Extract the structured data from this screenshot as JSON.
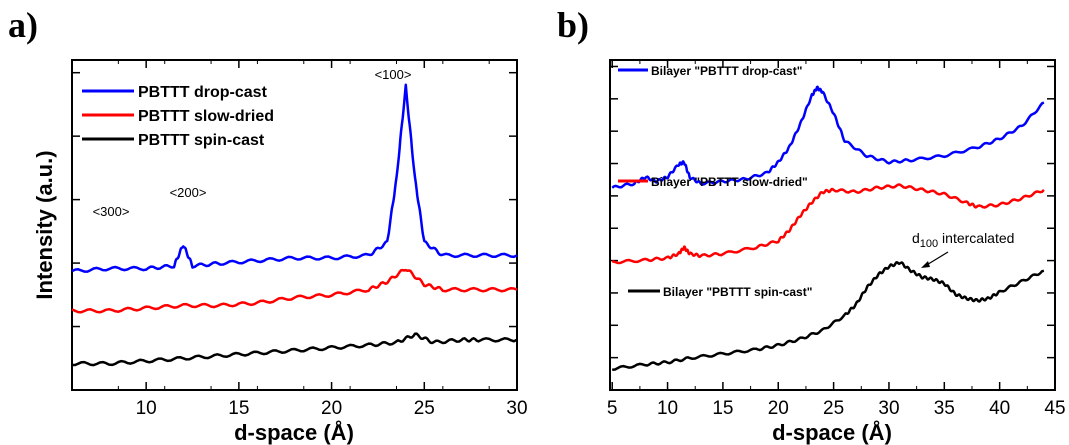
{
  "chart_data": [
    {
      "panel_label": "a)",
      "type": "line",
      "xlabel": "d-space (Å)",
      "ylabel": "Intensity (a.u.)",
      "xlim": [
        6,
        30
      ],
      "xticks": [
        "10",
        "15",
        "20",
        "25",
        "30"
      ],
      "yticks_labeled": false,
      "legend_position": "top-left",
      "annotations": [
        "<300>",
        "<200>",
        "<100>"
      ],
      "series": [
        {
          "name": "PBTTT drop-cast",
          "color": "#0000ff",
          "x": [
            6,
            8,
            10,
            11.5,
            12,
            12.5,
            14,
            16,
            18,
            20,
            22,
            23,
            23.5,
            24,
            24.5,
            25,
            26,
            28,
            30
          ],
          "y": [
            0.15,
            0.16,
            0.16,
            0.17,
            0.25,
            0.17,
            0.18,
            0.19,
            0.2,
            0.2,
            0.21,
            0.26,
            0.5,
            0.85,
            0.5,
            0.26,
            0.21,
            0.21,
            0.21
          ]
        },
        {
          "name": "PBTTT slow-dried",
          "color": "#ff0000",
          "x": [
            6,
            8,
            10,
            12,
            14,
            16,
            18,
            20,
            22,
            23,
            24,
            25,
            26,
            28,
            30
          ],
          "y": [
            0.0,
            0.0,
            0.01,
            0.02,
            0.02,
            0.03,
            0.05,
            0.06,
            0.08,
            0.11,
            0.16,
            0.1,
            0.08,
            0.08,
            0.08
          ]
        },
        {
          "name": "PBTTT spin-cast",
          "color": "#000000",
          "x": [
            6,
            8,
            10,
            12,
            14,
            16,
            18,
            20,
            22,
            23.5,
            24.5,
            25.5,
            27,
            28,
            30
          ],
          "y": [
            -0.2,
            -0.2,
            -0.19,
            -0.18,
            -0.17,
            -0.16,
            -0.15,
            -0.14,
            -0.13,
            -0.12,
            -0.09,
            -0.12,
            -0.11,
            -0.11,
            -0.11
          ]
        }
      ]
    },
    {
      "panel_label": "b)",
      "type": "line",
      "xlabel": "d-space (Å)",
      "xlim": [
        4.8,
        45
      ],
      "xticks": [
        "5",
        "10",
        "15",
        "20",
        "25",
        "30",
        "35",
        "40",
        "45"
      ],
      "yticks_labeled": false,
      "annotations": [
        {
          "text_main": "d",
          "text_sub": "100",
          "text_rest": " intercalated"
        }
      ],
      "series": [
        {
          "name": "Bilayer \"PBTTT drop-cast\"",
          "color": "#0000ff",
          "x": [
            5,
            7,
            8,
            9,
            10,
            11,
            11.5,
            12,
            13,
            15,
            17,
            19,
            20,
            21,
            22,
            23,
            23.5,
            24,
            25,
            26,
            28,
            30,
            32,
            35,
            38,
            40,
            42,
            44
          ],
          "y": [
            0.15,
            0.17,
            0.2,
            0.18,
            0.2,
            0.26,
            0.27,
            0.2,
            0.17,
            0.18,
            0.19,
            0.22,
            0.27,
            0.34,
            0.45,
            0.58,
            0.62,
            0.6,
            0.5,
            0.37,
            0.3,
            0.27,
            0.28,
            0.3,
            0.34,
            0.38,
            0.44,
            0.55
          ]
        },
        {
          "name": "Bilayer \"PBTTT slow-dried\"",
          "color": "#ff0000",
          "x": [
            5,
            8,
            10,
            11,
            11.5,
            12,
            13,
            15,
            18,
            20,
            21,
            22,
            23,
            24,
            25,
            27,
            29,
            31,
            33,
            35,
            37,
            38,
            40,
            42,
            44
          ],
          "y": [
            -0.2,
            -0.19,
            -0.18,
            -0.16,
            -0.13,
            -0.16,
            -0.17,
            -0.16,
            -0.13,
            -0.1,
            -0.05,
            0.02,
            0.08,
            0.13,
            0.14,
            0.13,
            0.15,
            0.16,
            0.14,
            0.12,
            0.08,
            0.06,
            0.07,
            0.1,
            0.14
          ]
        },
        {
          "name": "Bilayer \"PBTTT spin-cast\"",
          "color": "#000000",
          "x": [
            5,
            8,
            10,
            12,
            15,
            18,
            20,
            22,
            24,
            26,
            27,
            28,
            29,
            30,
            31,
            32,
            33,
            34,
            35,
            36,
            37,
            38,
            39,
            40,
            42,
            44
          ],
          "y": [
            -0.7,
            -0.68,
            -0.67,
            -0.65,
            -0.63,
            -0.61,
            -0.59,
            -0.56,
            -0.52,
            -0.45,
            -0.4,
            -0.32,
            -0.26,
            -0.22,
            -0.2,
            -0.24,
            -0.27,
            -0.28,
            -0.3,
            -0.35,
            -0.37,
            -0.38,
            -0.37,
            -0.34,
            -0.29,
            -0.24
          ]
        }
      ]
    }
  ]
}
